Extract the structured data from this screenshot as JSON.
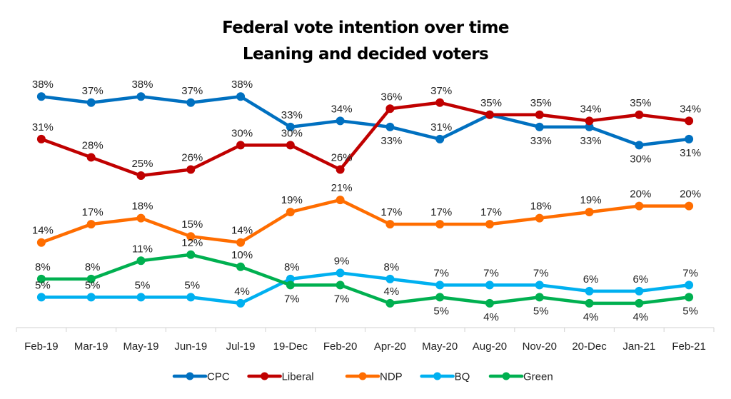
{
  "chart_data": {
    "type": "line",
    "title": "Federal vote intention over time",
    "subtitle": "Leaning and decided voters",
    "xlabel": "",
    "ylabel": "",
    "categories": [
      "Feb-19",
      "Mar-19",
      "May-19",
      "Jun-19",
      "Jul-19",
      "19-Dec",
      "Feb-20",
      "Apr-20",
      "May-20",
      "Aug-20",
      "Nov-20",
      "20-Dec",
      "Jan-21",
      "Feb-21"
    ],
    "ylim": [
      0,
      40
    ],
    "grid": false,
    "legend_position": "bottom",
    "value_suffix": "%",
    "series": [
      {
        "name": "CPC",
        "color": "#0070C0",
        "values": [
          38,
          37,
          38,
          37,
          38,
          33,
          34,
          33,
          31,
          35,
          33,
          33,
          30,
          31
        ],
        "label_pos": [
          "above",
          "above",
          "above",
          "above",
          "above",
          "above",
          "above",
          "below",
          "above",
          "above",
          "below",
          "below",
          "below",
          "below"
        ]
      },
      {
        "name": "Liberal",
        "color": "#C00000",
        "values": [
          31,
          28,
          25,
          26,
          30,
          30,
          26,
          36,
          37,
          35,
          35,
          34,
          35,
          34
        ],
        "label_pos": [
          "above",
          "above",
          "above",
          "above",
          "above",
          "above",
          "above",
          "above",
          "above",
          "hidden",
          "above",
          "above",
          "above",
          "above"
        ]
      },
      {
        "name": "NDP",
        "color": "#FF6D00",
        "values": [
          14,
          17,
          18,
          15,
          14,
          19,
          21,
          17,
          17,
          17,
          18,
          19,
          20,
          20
        ],
        "label_pos": [
          "above",
          "above",
          "above",
          "above",
          "above",
          "above",
          "above",
          "above",
          "above",
          "above",
          "above",
          "above",
          "above",
          "above"
        ]
      },
      {
        "name": "BQ",
        "color": "#00B0F0",
        "values": [
          5,
          5,
          5,
          5,
          4,
          8,
          9,
          8,
          7,
          7,
          7,
          6,
          6,
          7
        ],
        "label_pos": [
          "above",
          "above",
          "above",
          "above",
          "above",
          "above",
          "above",
          "above",
          "above",
          "above",
          "above",
          "above",
          "above",
          "above"
        ]
      },
      {
        "name": "Green",
        "color": "#00B050",
        "values": [
          8,
          8,
          11,
          12,
          10,
          7,
          7,
          4,
          5,
          4,
          5,
          4,
          4,
          5
        ],
        "label_pos": [
          "above",
          "above",
          "above",
          "above",
          "above",
          "below",
          "below",
          "above",
          "below",
          "below",
          "below",
          "below",
          "below",
          "below"
        ]
      }
    ]
  }
}
